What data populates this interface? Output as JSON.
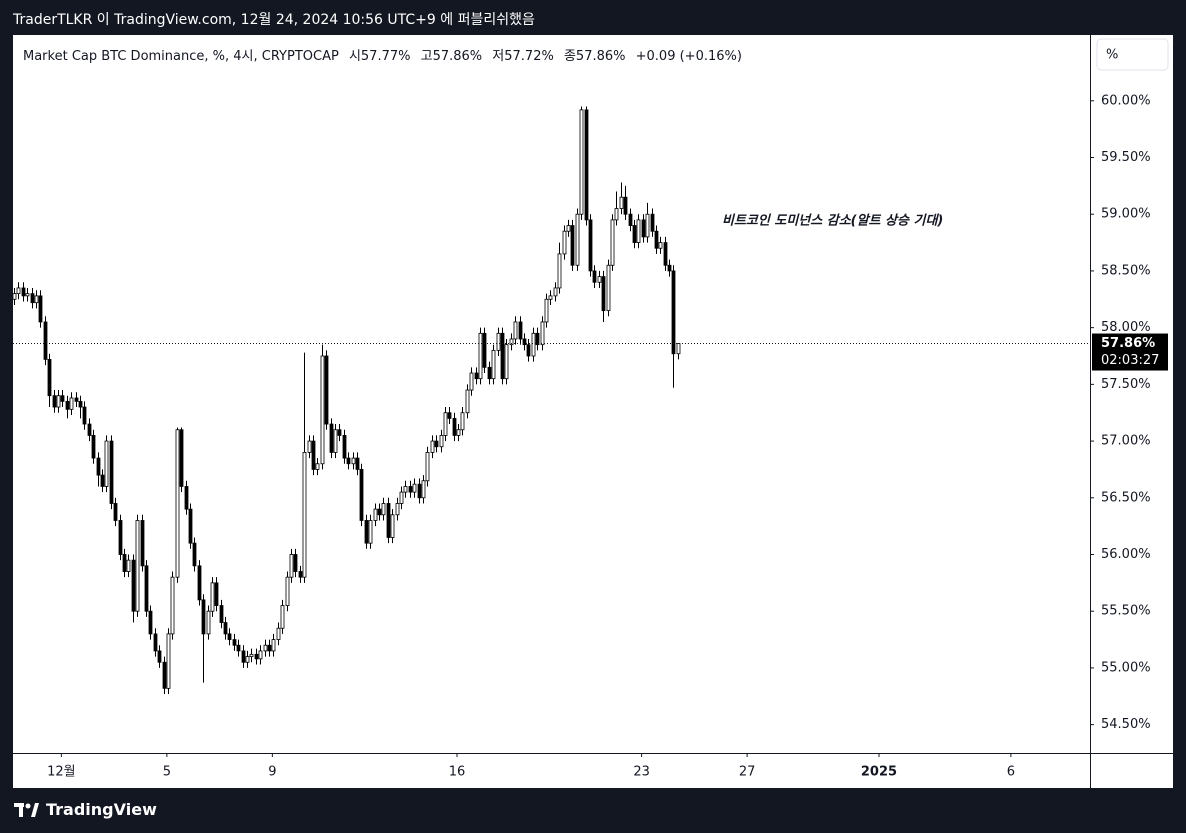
{
  "header": {
    "text": "TraderTLKR 이 TradingView.com, 12월 24, 2024 10:56 UTC+9 에 퍼블리쉬했음"
  },
  "footer": {
    "logo": "TradingView"
  },
  "chart_data": {
    "type": "candlestick",
    "symbol": "Market Cap BTC Dominance, %, 4시, CRYPTOCAP",
    "ohlc": {
      "open": {
        "value": 57.77,
        "label": "시57.77%"
      },
      "high": {
        "value": 57.86,
        "label": "고57.86%"
      },
      "low": {
        "value": 57.72,
        "label": "저57.72%"
      },
      "close": {
        "value": 57.86,
        "label": "종57.86%"
      },
      "change": {
        "value": 0.09,
        "label": "+0.09 (+0.16%)"
      }
    },
    "annotation": "비트코인 도미넌스 감소(알트 상승 기대)",
    "scale_button": "%",
    "last_price": {
      "value": 57.86,
      "label": "57.86%"
    },
    "countdown": "02:03:27",
    "x": [
      "2024-11-29 05:00",
      "2024-11-29 09:00",
      "2024-11-29 13:00",
      "2024-11-29 17:00",
      "2024-11-29 21:00",
      "2024-11-30 01:00",
      "2024-11-30 05:00",
      "2024-11-30 09:00",
      "2024-11-30 13:00",
      "2024-11-30 17:00",
      "2024-11-30 21:00",
      "2024-12-01 01:00",
      "2024-12-01 05:00",
      "2024-12-01 09:00",
      "2024-12-01 13:00",
      "2024-12-01 17:00",
      "2024-12-01 21:00",
      "2024-12-02 01:00",
      "2024-12-02 05:00",
      "2024-12-02 09:00",
      "2024-12-02 13:00",
      "2024-12-02 17:00",
      "2024-12-02 21:00",
      "2024-12-03 01:00",
      "2024-12-03 05:00",
      "2024-12-03 09:00",
      "2024-12-03 13:00",
      "2024-12-03 17:00",
      "2024-12-03 21:00",
      "2024-12-04 01:00",
      "2024-12-04 05:00",
      "2024-12-04 09:00",
      "2024-12-04 13:00",
      "2024-12-04 17:00",
      "2024-12-04 21:00",
      "2024-12-05 01:00",
      "2024-12-05 05:00",
      "2024-12-05 09:00",
      "2024-12-05 13:00",
      "2024-12-05 17:00",
      "2024-12-05 21:00",
      "2024-12-06 01:00",
      "2024-12-06 05:00",
      "2024-12-06 09:00",
      "2024-12-06 13:00",
      "2024-12-06 17:00",
      "2024-12-06 21:00",
      "2024-12-07 01:00",
      "2024-12-07 05:00",
      "2024-12-07 09:00",
      "2024-12-07 13:00",
      "2024-12-07 17:00",
      "2024-12-07 21:00",
      "2024-12-08 01:00",
      "2024-12-08 05:00",
      "2024-12-08 09:00",
      "2024-12-08 13:00",
      "2024-12-08 17:00",
      "2024-12-08 21:00",
      "2024-12-09 01:00",
      "2024-12-09 05:00",
      "2024-12-09 09:00",
      "2024-12-09 13:00",
      "2024-12-09 17:00",
      "2024-12-09 21:00",
      "2024-12-10 01:00",
      "2024-12-10 05:00",
      "2024-12-10 09:00",
      "2024-12-10 13:00",
      "2024-12-10 17:00",
      "2024-12-10 21:00",
      "2024-12-11 01:00",
      "2024-12-11 05:00",
      "2024-12-11 09:00",
      "2024-12-11 13:00",
      "2024-12-11 17:00",
      "2024-12-11 21:00",
      "2024-12-12 01:00",
      "2024-12-12 05:00",
      "2024-12-12 09:00",
      "2024-12-12 13:00",
      "2024-12-12 17:00",
      "2024-12-12 21:00",
      "2024-12-13 01:00",
      "2024-12-13 05:00",
      "2024-12-13 09:00",
      "2024-12-13 13:00",
      "2024-12-13 17:00",
      "2024-12-13 21:00",
      "2024-12-14 01:00",
      "2024-12-14 05:00",
      "2024-12-14 09:00",
      "2024-12-14 13:00",
      "2024-12-14 17:00",
      "2024-12-14 21:00",
      "2024-12-15 01:00",
      "2024-12-15 05:00",
      "2024-12-15 09:00",
      "2024-12-15 13:00",
      "2024-12-15 17:00",
      "2024-12-15 21:00",
      "2024-12-16 01:00",
      "2024-12-16 05:00",
      "2024-12-16 09:00",
      "2024-12-16 13:00",
      "2024-12-16 17:00",
      "2024-12-16 21:00",
      "2024-12-17 01:00",
      "2024-12-17 05:00",
      "2024-12-17 09:00",
      "2024-12-17 13:00",
      "2024-12-17 17:00",
      "2024-12-17 21:00",
      "2024-12-18 01:00",
      "2024-12-18 05:00",
      "2024-12-18 09:00",
      "2024-12-18 13:00",
      "2024-12-18 17:00",
      "2024-12-18 21:00",
      "2024-12-19 01:00",
      "2024-12-19 05:00",
      "2024-12-19 09:00",
      "2024-12-19 13:00",
      "2024-12-19 17:00",
      "2024-12-19 21:00",
      "2024-12-20 01:00",
      "2024-12-20 05:00",
      "2024-12-20 09:00",
      "2024-12-20 13:00",
      "2024-12-20 17:00",
      "2024-12-20 21:00",
      "2024-12-21 01:00",
      "2024-12-21 05:00",
      "2024-12-21 09:00",
      "2024-12-21 13:00",
      "2024-12-21 17:00",
      "2024-12-21 21:00",
      "2024-12-22 01:00",
      "2024-12-22 05:00",
      "2024-12-22 09:00",
      "2024-12-22 13:00",
      "2024-12-22 17:00",
      "2024-12-22 21:00",
      "2024-12-23 01:00",
      "2024-12-23 05:00",
      "2024-12-23 09:00",
      "2024-12-23 13:00",
      "2024-12-23 17:00",
      "2024-12-23 21:00",
      "2024-12-24 01:00",
      "2024-12-24 05:00",
      "2024-12-24 09:00"
    ],
    "open": [
      58.25,
      58.3,
      58.35,
      58.28,
      58.3,
      58.22,
      58.28,
      58.05,
      57.72,
      57.4,
      57.3,
      57.4,
      57.35,
      57.28,
      57.38,
      57.35,
      57.3,
      57.15,
      57.05,
      56.85,
      56.7,
      56.6,
      57.0,
      56.45,
      56.3,
      56.0,
      55.85,
      55.95,
      55.5,
      56.3,
      55.9,
      55.5,
      55.3,
      55.15,
      55.05,
      54.82,
      55.3,
      55.8,
      57.1,
      56.6,
      56.4,
      56.1,
      55.9,
      55.6,
      55.3,
      55.5,
      55.75,
      55.55,
      55.4,
      55.3,
      55.25,
      55.2,
      55.15,
      55.05,
      55.1,
      55.12,
      55.08,
      55.15,
      55.2,
      55.15,
      55.25,
      55.35,
      55.55,
      55.8,
      56.0,
      55.85,
      55.8,
      56.9,
      57.0,
      56.75,
      56.8,
      57.75,
      57.15,
      56.9,
      57.1,
      57.05,
      56.85,
      56.8,
      56.85,
      56.75,
      56.3,
      56.1,
      56.3,
      56.4,
      56.35,
      56.45,
      56.15,
      56.35,
      56.45,
      56.55,
      56.6,
      56.55,
      56.62,
      56.5,
      56.65,
      56.9,
      57.0,
      56.95,
      57.05,
      57.25,
      57.2,
      57.05,
      57.1,
      57.25,
      57.45,
      57.6,
      57.55,
      57.95,
      57.65,
      57.55,
      57.8,
      57.95,
      57.55,
      57.85,
      57.9,
      58.05,
      57.9,
      57.85,
      57.75,
      57.95,
      57.85,
      58.05,
      58.25,
      58.28,
      58.35,
      58.65,
      58.85,
      58.9,
      58.55,
      59.0,
      59.92,
      58.95,
      58.5,
      58.4,
      58.45,
      58.15,
      58.55,
      58.95,
      59.05,
      59.15,
      59.0,
      58.9,
      58.75,
      58.95,
      58.8,
      59.0,
      58.85,
      58.7,
      58.75,
      58.55,
      58.5,
      57.77
    ],
    "high": [
      58.35,
      58.4,
      58.4,
      58.35,
      58.35,
      58.33,
      58.33,
      58.1,
      57.77,
      57.45,
      57.45,
      57.45,
      57.4,
      57.43,
      57.43,
      57.4,
      57.35,
      57.2,
      57.1,
      56.9,
      56.75,
      57.05,
      57.05,
      56.5,
      56.35,
      56.05,
      56.0,
      56.0,
      56.35,
      56.35,
      55.95,
      55.55,
      55.35,
      55.2,
      55.1,
      55.35,
      55.85,
      57.12,
      57.12,
      56.65,
      56.45,
      56.15,
      55.95,
      55.65,
      55.55,
      55.8,
      55.8,
      55.6,
      55.45,
      55.35,
      55.3,
      55.25,
      55.2,
      55.15,
      55.17,
      55.17,
      55.2,
      55.25,
      55.25,
      55.3,
      55.4,
      55.6,
      55.85,
      56.05,
      56.05,
      55.9,
      57.78,
      57.05,
      57.05,
      56.85,
      57.85,
      57.8,
      57.2,
      57.15,
      57.15,
      57.1,
      56.9,
      56.9,
      56.9,
      56.8,
      56.35,
      56.35,
      56.45,
      56.45,
      56.5,
      56.5,
      56.4,
      56.5,
      56.6,
      56.65,
      56.65,
      56.67,
      56.67,
      56.7,
      56.95,
      57.05,
      57.05,
      57.1,
      57.3,
      57.3,
      57.25,
      57.15,
      57.3,
      57.5,
      57.65,
      57.65,
      58.0,
      58.0,
      57.7,
      57.85,
      58.0,
      58.0,
      57.9,
      57.95,
      58.1,
      58.1,
      57.95,
      57.9,
      58.0,
      58.0,
      58.1,
      58.3,
      58.33,
      58.4,
      58.75,
      58.9,
      58.95,
      58.95,
      59.05,
      59.95,
      59.95,
      59.0,
      58.55,
      58.5,
      58.5,
      58.6,
      59.0,
      59.2,
      59.28,
      59.25,
      59.05,
      58.95,
      59.0,
      59.0,
      59.1,
      59.05,
      58.9,
      58.8,
      58.8,
      58.6,
      58.55,
      57.86
    ],
    "low": [
      58.2,
      58.25,
      58.23,
      58.23,
      58.17,
      58.17,
      58.0,
      57.67,
      57.3,
      57.25,
      57.25,
      57.3,
      57.2,
      57.23,
      57.3,
      57.2,
      57.1,
      57.0,
      56.8,
      56.6,
      56.55,
      56.55,
      56.4,
      56.25,
      55.95,
      55.8,
      55.8,
      55.4,
      55.45,
      55.85,
      55.45,
      55.25,
      55.1,
      55.0,
      54.77,
      54.77,
      55.25,
      55.75,
      56.55,
      56.35,
      56.05,
      55.85,
      55.55,
      54.87,
      55.25,
      55.45,
      55.5,
      55.35,
      55.25,
      55.2,
      55.15,
      55.1,
      55.0,
      55.0,
      55.05,
      55.03,
      55.03,
      55.1,
      55.1,
      55.1,
      55.2,
      55.3,
      55.5,
      55.75,
      55.8,
      55.75,
      55.75,
      56.85,
      56.7,
      56.7,
      56.75,
      57.1,
      56.85,
      56.85,
      57.0,
      56.8,
      56.75,
      56.75,
      56.7,
      56.25,
      56.05,
      56.05,
      56.25,
      56.3,
      56.3,
      56.1,
      56.1,
      56.3,
      56.4,
      56.5,
      56.5,
      56.5,
      56.45,
      56.45,
      56.6,
      56.85,
      56.9,
      56.9,
      57.0,
      57.15,
      57.0,
      57.0,
      57.05,
      57.2,
      57.4,
      57.5,
      57.5,
      57.6,
      57.5,
      57.5,
      57.75,
      57.5,
      57.5,
      57.8,
      57.85,
      57.85,
      57.8,
      57.7,
      57.7,
      57.8,
      57.8,
      58.0,
      58.2,
      58.23,
      58.3,
      58.6,
      58.8,
      58.5,
      58.5,
      58.95,
      58.9,
      58.45,
      58.35,
      58.35,
      58.05,
      58.1,
      58.5,
      58.9,
      59.0,
      58.95,
      58.85,
      58.7,
      58.7,
      58.75,
      58.75,
      58.8,
      58.65,
      58.65,
      58.5,
      58.45,
      57.47,
      57.72
    ],
    "close": [
      58.3,
      58.35,
      58.28,
      58.3,
      58.22,
      58.28,
      58.05,
      57.72,
      57.4,
      57.3,
      57.4,
      57.35,
      57.28,
      57.38,
      57.35,
      57.3,
      57.15,
      57.05,
      56.85,
      56.7,
      56.6,
      57.0,
      56.45,
      56.3,
      56.0,
      55.85,
      55.95,
      55.5,
      56.3,
      55.9,
      55.5,
      55.3,
      55.15,
      55.05,
      54.82,
      55.3,
      55.8,
      57.1,
      56.6,
      56.4,
      56.1,
      55.9,
      55.6,
      55.3,
      55.5,
      55.75,
      55.55,
      55.4,
      55.3,
      55.25,
      55.2,
      55.15,
      55.05,
      55.1,
      55.12,
      55.08,
      55.15,
      55.2,
      55.15,
      55.25,
      55.35,
      55.55,
      55.8,
      56.0,
      55.85,
      55.8,
      56.9,
      57.0,
      56.75,
      56.8,
      57.75,
      57.15,
      56.9,
      57.1,
      57.05,
      56.85,
      56.8,
      56.85,
      56.75,
      56.3,
      56.1,
      56.3,
      56.4,
      56.35,
      56.45,
      56.15,
      56.35,
      56.45,
      56.55,
      56.6,
      56.55,
      56.62,
      56.5,
      56.65,
      56.9,
      57.0,
      56.95,
      57.05,
      57.25,
      57.2,
      57.05,
      57.1,
      57.25,
      57.45,
      57.6,
      57.55,
      57.95,
      57.65,
      57.55,
      57.8,
      57.95,
      57.55,
      57.85,
      57.9,
      58.05,
      57.9,
      57.85,
      57.75,
      57.95,
      57.85,
      58.05,
      58.25,
      58.28,
      58.35,
      58.65,
      58.85,
      58.9,
      58.55,
      59.0,
      59.92,
      58.95,
      58.5,
      58.4,
      58.45,
      58.15,
      58.55,
      58.95,
      59.05,
      59.15,
      59.0,
      58.9,
      58.75,
      58.95,
      58.8,
      59.0,
      58.85,
      58.7,
      58.75,
      58.55,
      58.5,
      57.77,
      57.86
    ],
    "up_color": "#ffffff",
    "down_color": "#000000",
    "wick_color": "#000000",
    "xlim": [
      "2024-11-29 04:00",
      "2025-01-09 00:00"
    ],
    "xticks": [
      {
        "value": "2024-12-01 00:00",
        "label": "12월"
      },
      {
        "value": "2024-12-05 00:00",
        "label": "5"
      },
      {
        "value": "2024-12-09 00:00",
        "label": "9"
      },
      {
        "value": "2024-12-16 00:00",
        "label": "16"
      },
      {
        "value": "2024-12-23 00:00",
        "label": "23"
      },
      {
        "value": "2024-12-27 00:00",
        "label": "27"
      },
      {
        "value": "2025-01-01 00:00",
        "label": "2025"
      },
      {
        "value": "2025-01-06 00:00",
        "label": "6"
      }
    ],
    "ylim": [
      54.25,
      60.58
    ],
    "yticks": [
      {
        "value": 54.5,
        "label": "54.50%"
      },
      {
        "value": 55,
        "label": "55.00%"
      },
      {
        "value": 55.5,
        "label": "55.50%"
      },
      {
        "value": 56,
        "label": "56.00%"
      },
      {
        "value": 56.5,
        "label": "56.50%"
      },
      {
        "value": 57,
        "label": "57.00%"
      },
      {
        "value": 57.5,
        "label": "57.50%"
      },
      {
        "value": 58,
        "label": "58.00%"
      },
      {
        "value": 58.5,
        "label": "58.50%"
      },
      {
        "value": 59,
        "label": "59.00%"
      },
      {
        "value": 59.5,
        "label": "59.50%"
      },
      {
        "value": 60,
        "label": "60.00%"
      }
    ],
    "grid": false
  }
}
